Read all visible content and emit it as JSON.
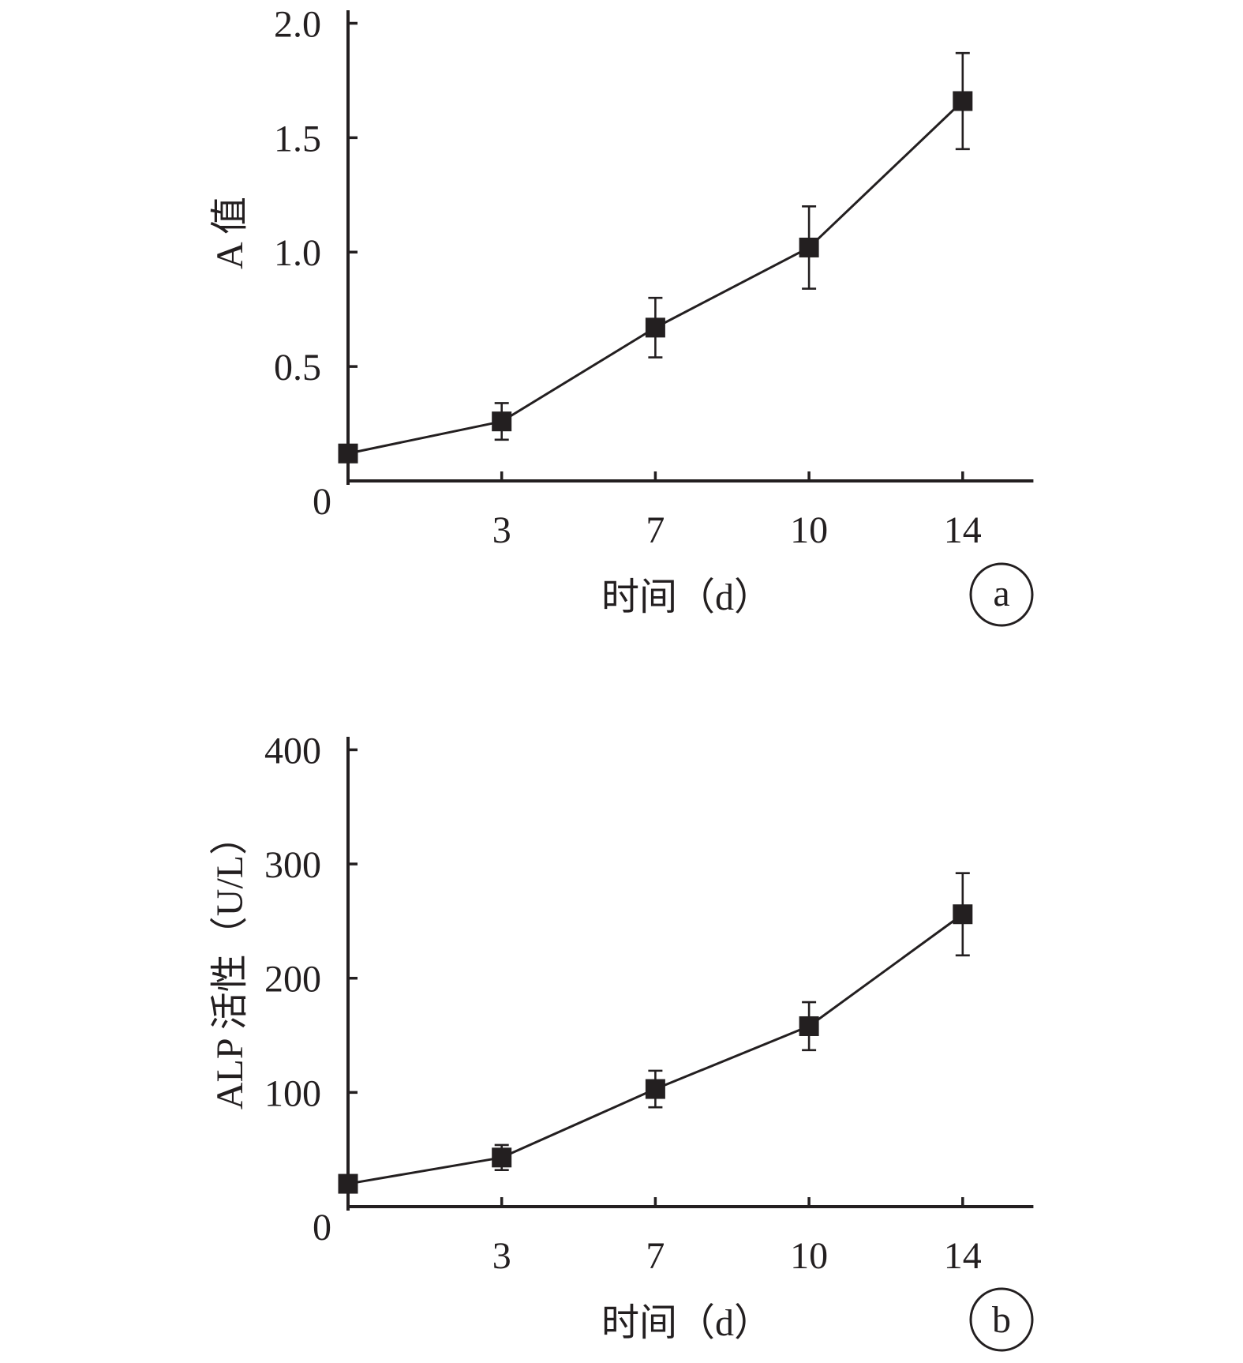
{
  "colors": {
    "ink": "#231f20"
  },
  "chart_data": [
    {
      "type": "line",
      "panel": "a",
      "x": [
        0,
        3,
        7,
        10,
        14
      ],
      "x_scale": "categorical",
      "xticks": [
        "3",
        "7",
        "10",
        "14"
      ],
      "xlabel": "时间（d）",
      "ylabel": "A 值",
      "ylim": [
        0,
        2.05
      ],
      "yticks": [
        "0.5",
        "1.0",
        "1.5",
        "2.0"
      ],
      "origin_label": "0",
      "grid": false,
      "series": [
        {
          "marker": "square",
          "values": [
            0.12,
            0.26,
            0.67,
            1.02,
            1.66
          ],
          "error": [
            0,
            0.08,
            0.13,
            0.18,
            0.21
          ]
        }
      ]
    },
    {
      "type": "line",
      "panel": "b",
      "x": [
        0,
        3,
        7,
        10,
        14
      ],
      "x_scale": "categorical",
      "xticks": [
        "3",
        "7",
        "10",
        "14"
      ],
      "xlabel": "时间（d）",
      "ylabel": "ALP 活性（U/L）",
      "ylim": [
        0,
        410
      ],
      "yticks": [
        "100",
        "200",
        "300",
        "400"
      ],
      "origin_label": "0",
      "grid": false,
      "series": [
        {
          "marker": "square",
          "values": [
            20,
            43,
            103,
            158,
            256
          ],
          "error": [
            0,
            11,
            16,
            21,
            36
          ]
        }
      ]
    }
  ]
}
